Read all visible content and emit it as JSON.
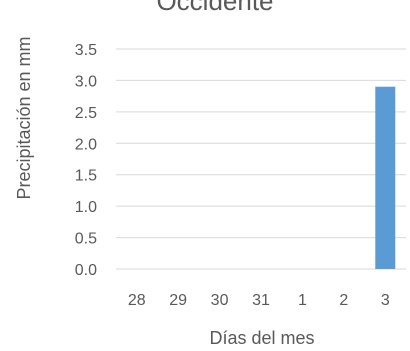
{
  "chart_data": {
    "type": "bar",
    "title": "Occidente",
    "xlabel": "Días del mes",
    "ylabel": "Precipitación en mm",
    "categories": [
      "28",
      "29",
      "30",
      "31",
      "1",
      "2",
      "3"
    ],
    "values": [
      0,
      0,
      0,
      0,
      0,
      0,
      2.9
    ],
    "yticks": [
      "0.0",
      "0.5",
      "1.0",
      "1.5",
      "2.0",
      "2.5",
      "3.0",
      "3.5"
    ],
    "ylim": [
      0,
      3.5
    ],
    "grid": true,
    "bar_color": "#5b9bd5",
    "grid_color": "#d9d9d9"
  }
}
